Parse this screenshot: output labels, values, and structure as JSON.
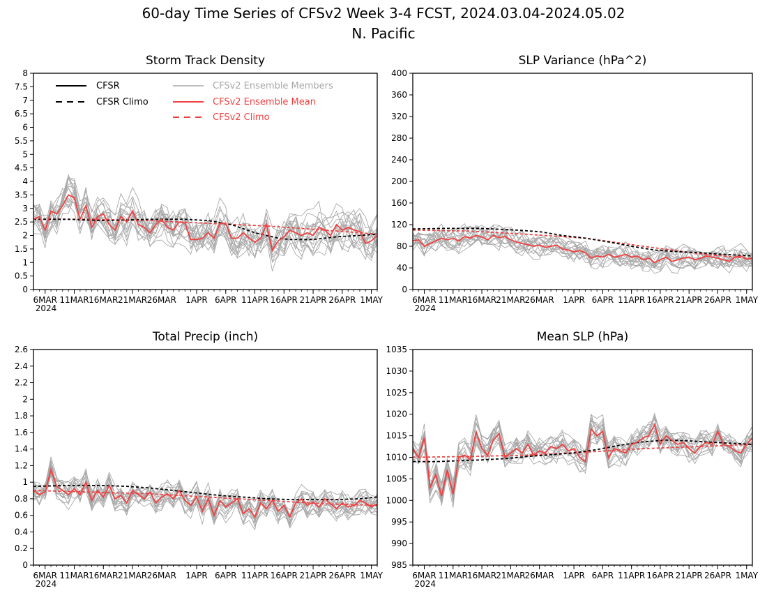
{
  "figure": {
    "title_line1": "60-day Time Series of CFSv2 Week 3-4 FCST, 2024.03.04-2024.05.02",
    "title_line2": "N. Pacific"
  },
  "legend": {
    "cfsr": "CFSR",
    "cfsr_climo": "CFSR Climo",
    "members": "CFSv2 Ensemble Members",
    "ens_mean": "CFSv2 Ensemble Mean",
    "cfsv2_climo": "CFSv2 Climo"
  },
  "colors": {
    "cfsr": "#000000",
    "members": "#a8a8a8",
    "ens_mean": "#f04040",
    "cfsv2_climo": "#f04040",
    "axes": "#000000"
  },
  "x_axis": {
    "tick_days": [
      2,
      7,
      12,
      17,
      22,
      28,
      33,
      38,
      43,
      48,
      53,
      58
    ],
    "tick_labels": [
      "6MAR",
      "11MAR",
      "16MAR",
      "21MAR",
      "26MAR",
      "1APR",
      "6APR",
      "11APR",
      "16APR",
      "21APR",
      "26APR",
      "1MAY"
    ],
    "year_label": "2024"
  },
  "chart_data": [
    {
      "type": "line",
      "title": "Storm Track Density",
      "ylim": [
        0,
        8
      ],
      "yticks": [
        0,
        0.5,
        1,
        1.5,
        2,
        2.5,
        3,
        3.5,
        4,
        4.5,
        5,
        5.5,
        6,
        6.5,
        7,
        7.5,
        8
      ],
      "ytick_labels": [
        "0",
        "0.5",
        "1",
        "1.5",
        "2",
        "2.5",
        "3",
        "3.5",
        "4",
        "4.5",
        "5",
        "5.5",
        "6",
        "6.5",
        "7",
        "7.5",
        "8"
      ],
      "x_range": [
        0,
        59
      ],
      "legend_placement": "top-left",
      "series": [
        {
          "name": "CFSv2 Climo",
          "style": "dashed",
          "color": "#f04040",
          "x": [
            0,
            10,
            20,
            30,
            40,
            50,
            59
          ],
          "values": [
            2.6,
            2.6,
            2.55,
            2.45,
            2.35,
            2.2,
            2.05
          ]
        },
        {
          "name": "CFSR Climo",
          "style": "dashed",
          "color": "#000000",
          "x": [
            0,
            6,
            12,
            20,
            26,
            30,
            34,
            38,
            42,
            44,
            48,
            52,
            56,
            59
          ],
          "values": [
            2.6,
            2.6,
            2.55,
            2.6,
            2.6,
            2.55,
            2.4,
            2.1,
            1.9,
            1.85,
            1.85,
            1.95,
            2.0,
            2.05
          ]
        },
        {
          "name": "CFSv2 Ensemble Mean",
          "style": "solid",
          "color": "#f04040",
          "x": [
            0,
            1,
            2,
            3,
            4,
            5,
            6,
            7,
            8,
            9,
            10,
            11,
            12,
            13,
            14,
            15,
            16,
            17,
            18,
            19,
            20,
            21,
            22,
            23,
            24,
            25,
            26,
            27,
            28,
            29,
            30,
            31,
            32,
            33,
            34,
            35,
            36,
            37,
            38,
            39,
            40,
            41,
            42,
            43,
            44,
            45,
            46,
            47,
            48,
            49,
            50,
            51,
            52,
            53,
            54,
            55,
            56,
            57,
            58,
            59
          ],
          "values": [
            2.6,
            2.7,
            2.2,
            2.9,
            2.8,
            3.1,
            3.5,
            3.4,
            2.6,
            3.1,
            2.3,
            2.7,
            2.8,
            2.4,
            2.2,
            2.7,
            2.5,
            2.9,
            2.4,
            2.3,
            2.1,
            2.4,
            2.6,
            2.3,
            2.2,
            2.5,
            2.45,
            1.85,
            1.85,
            1.9,
            2.1,
            1.9,
            2.45,
            2.45,
            1.9,
            1.9,
            2.1,
            1.9,
            1.75,
            1.9,
            2.4,
            1.45,
            1.8,
            1.95,
            2.2,
            2.1,
            2.0,
            2.1,
            2.0,
            2.3,
            2.2,
            2.0,
            2.4,
            2.2,
            2.3,
            2.2,
            2.15,
            1.7,
            1.8,
            2.0
          ]
        }
      ]
    },
    {
      "type": "line",
      "title": "SLP Variance (hPa^2)",
      "ylim": [
        0,
        400
      ],
      "yticks": [
        0,
        40,
        80,
        120,
        160,
        200,
        240,
        280,
        320,
        360,
        400
      ],
      "ytick_labels": [
        "0",
        "40",
        "80",
        "120",
        "160",
        "200",
        "240",
        "280",
        "320",
        "360",
        "400"
      ],
      "x_range": [
        0,
        59
      ],
      "series": [
        {
          "name": "CFSv2 Climo",
          "style": "dashed",
          "color": "#f04040",
          "x": [
            0,
            10,
            20,
            30,
            40,
            50,
            59
          ],
          "values": [
            110,
            108,
            102,
            95,
            80,
            66,
            57
          ]
        },
        {
          "name": "CFSR Climo",
          "style": "dashed",
          "color": "#000000",
          "x": [
            0,
            6,
            12,
            18,
            22,
            26,
            30,
            34,
            38,
            42,
            46,
            50,
            54,
            59
          ],
          "values": [
            112,
            113,
            113,
            110,
            107,
            100,
            95,
            88,
            80,
            73,
            70,
            68,
            65,
            62
          ]
        },
        {
          "name": "CFSv2 Ensemble Mean",
          "style": "solid",
          "color": "#f04040",
          "x": [
            0,
            1,
            2,
            3,
            4,
            5,
            6,
            7,
            8,
            9,
            10,
            11,
            12,
            13,
            14,
            15,
            16,
            17,
            18,
            19,
            20,
            21,
            22,
            23,
            24,
            25,
            26,
            27,
            28,
            29,
            30,
            31,
            32,
            33,
            34,
            35,
            36,
            37,
            38,
            39,
            40,
            41,
            42,
            43,
            44,
            45,
            46,
            47,
            48,
            49,
            50,
            51,
            52,
            53,
            54,
            55,
            56,
            57,
            58,
            59
          ],
          "values": [
            90,
            92,
            80,
            85,
            90,
            95,
            92,
            95,
            90,
            98,
            95,
            100,
            97,
            92,
            100,
            96,
            98,
            92,
            88,
            85,
            83,
            80,
            82,
            78,
            80,
            82,
            75,
            73,
            70,
            72,
            68,
            58,
            62,
            60,
            65,
            60,
            62,
            65,
            60,
            62,
            55,
            58,
            50,
            55,
            60,
            52,
            55,
            58,
            60,
            55,
            58,
            62,
            60,
            58,
            55,
            52,
            60,
            62,
            56,
            58
          ]
        }
      ]
    },
    {
      "type": "line",
      "title": "Total Precip (inch)",
      "ylim": [
        0,
        2.6
      ],
      "yticks": [
        0,
        0.2,
        0.4,
        0.6,
        0.8,
        1,
        1.2,
        1.4,
        1.6,
        1.8,
        2,
        2.2,
        2.4,
        2.6
      ],
      "ytick_labels": [
        "0",
        "0.2",
        "0.4",
        "0.6",
        "0.8",
        "1",
        "1.2",
        "1.4",
        "1.6",
        "1.8",
        "2",
        "2.2",
        "2.4",
        "2.6"
      ],
      "x_range": [
        0,
        59
      ],
      "series": [
        {
          "name": "CFSv2 Climo",
          "style": "dashed",
          "color": "#f04040",
          "x": [
            0,
            10,
            20,
            30,
            40,
            50,
            59
          ],
          "values": [
            0.9,
            0.88,
            0.86,
            0.82,
            0.78,
            0.74,
            0.72
          ]
        },
        {
          "name": "CFSR Climo",
          "style": "dashed",
          "color": "#000000",
          "x": [
            0,
            6,
            12,
            16,
            20,
            24,
            28,
            32,
            36,
            40,
            44,
            48,
            52,
            56,
            59
          ],
          "values": [
            0.95,
            0.96,
            0.96,
            0.95,
            0.93,
            0.9,
            0.87,
            0.84,
            0.82,
            0.8,
            0.79,
            0.79,
            0.79,
            0.8,
            0.82
          ]
        },
        {
          "name": "CFSv2 Ensemble Mean",
          "style": "solid",
          "color": "#f04040",
          "x": [
            0,
            1,
            2,
            3,
            4,
            5,
            6,
            7,
            8,
            9,
            10,
            11,
            12,
            13,
            14,
            15,
            16,
            17,
            18,
            19,
            20,
            21,
            22,
            23,
            24,
            25,
            26,
            27,
            28,
            29,
            30,
            31,
            32,
            33,
            34,
            35,
            36,
            37,
            38,
            39,
            40,
            41,
            42,
            43,
            44,
            45,
            46,
            47,
            48,
            49,
            50,
            51,
            52,
            53,
            54,
            55,
            56,
            57,
            58,
            59
          ],
          "values": [
            0.9,
            0.85,
            0.88,
            1.15,
            0.95,
            0.9,
            0.85,
            0.92,
            0.85,
            1.0,
            0.78,
            0.9,
            0.82,
            0.96,
            0.8,
            0.84,
            0.75,
            0.9,
            0.85,
            0.8,
            0.88,
            0.75,
            0.82,
            0.86,
            0.8,
            0.9,
            0.78,
            0.72,
            0.82,
            0.65,
            0.8,
            0.6,
            0.78,
            0.7,
            0.75,
            0.8,
            0.62,
            0.68,
            0.58,
            0.75,
            0.68,
            0.78,
            0.65,
            0.72,
            0.58,
            0.75,
            0.8,
            0.72,
            0.76,
            0.7,
            0.8,
            0.74,
            0.68,
            0.75,
            0.7,
            0.72,
            0.78,
            0.75,
            0.7,
            0.74
          ]
        }
      ]
    },
    {
      "type": "line",
      "title": "Mean SLP (hPa)",
      "ylim": [
        985,
        1035
      ],
      "yticks": [
        985,
        990,
        995,
        1000,
        1005,
        1010,
        1015,
        1020,
        1025,
        1030,
        1035
      ],
      "ytick_labels": [
        "985",
        "990",
        "995",
        "1000",
        "1005",
        "1010",
        "1015",
        "1020",
        "1025",
        "1030",
        "1035"
      ],
      "x_range": [
        0,
        59
      ],
      "series": [
        {
          "name": "CFSv2 Climo",
          "style": "dashed",
          "color": "#f04040",
          "x": [
            0,
            10,
            20,
            30,
            40,
            50,
            59
          ],
          "values": [
            1010,
            1010.2,
            1010.5,
            1011.2,
            1012,
            1012.5,
            1013
          ]
        },
        {
          "name": "CFSR Climo",
          "style": "dashed",
          "color": "#000000",
          "x": [
            0,
            4,
            8,
            12,
            16,
            20,
            24,
            28,
            32,
            36,
            40,
            44,
            48,
            52,
            56,
            59
          ],
          "values": [
            1009,
            1009,
            1009.2,
            1009.4,
            1009.7,
            1010.2,
            1010.6,
            1011,
            1011.8,
            1012.8,
            1013.6,
            1014,
            1013.8,
            1013.5,
            1013.2,
            1013
          ]
        },
        {
          "name": "CFSv2 Ensemble Mean",
          "style": "solid",
          "color": "#f04040",
          "x": [
            0,
            1,
            2,
            3,
            4,
            5,
            6,
            7,
            8,
            9,
            10,
            11,
            12,
            13,
            14,
            15,
            16,
            17,
            18,
            19,
            20,
            21,
            22,
            23,
            24,
            25,
            26,
            27,
            28,
            29,
            30,
            31,
            32,
            33,
            34,
            35,
            36,
            37,
            38,
            39,
            40,
            41,
            42,
            43,
            44,
            45,
            46,
            47,
            48,
            49,
            50,
            51,
            52,
            53,
            54,
            55,
            56,
            57,
            58,
            59
          ],
          "values": [
            1012,
            1010,
            1014.5,
            1003,
            1006,
            1001,
            1007,
            1001.5,
            1010,
            1010.5,
            1009.5,
            1016,
            1012,
            1010.5,
            1014,
            1015.5,
            1010,
            1011,
            1012,
            1011,
            1013,
            1010.5,
            1011.5,
            1011,
            1012.5,
            1012,
            1013,
            1011.5,
            1012,
            1010,
            1009,
            1016.5,
            1015,
            1016,
            1010,
            1012,
            1011.5,
            1011,
            1013,
            1013.5,
            1014.5,
            1015,
            1017.5,
            1013,
            1015,
            1014,
            1013,
            1013.5,
            1012,
            1011,
            1012.5,
            1013.5,
            1013,
            1016,
            1013,
            1012.5,
            1011.5,
            1011,
            1013,
            1014.5
          ]
        }
      ]
    }
  ]
}
